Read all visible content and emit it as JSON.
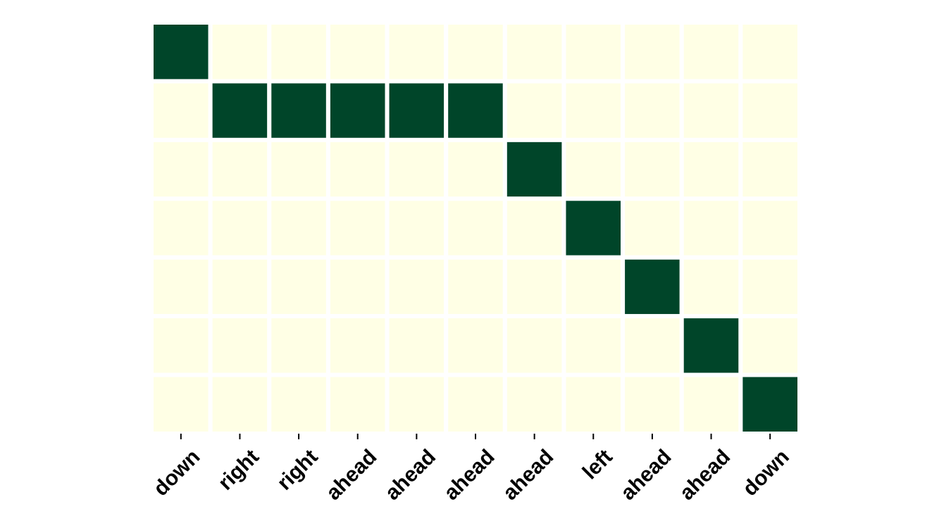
{
  "chart_data": {
    "type": "heatmap",
    "title": "",
    "xlabel": "",
    "ylabel": "",
    "x_categories": [
      "down",
      "right",
      "right",
      "ahead",
      "ahead",
      "ahead",
      "ahead",
      "left",
      "ahead",
      "ahead",
      "down"
    ],
    "y_categories": [],
    "rows": 7,
    "values": [
      [
        1,
        0,
        0,
        0,
        0,
        0,
        0,
        0,
        0,
        0,
        0
      ],
      [
        0,
        1,
        1,
        1,
        1,
        1,
        0,
        0,
        0,
        0,
        0
      ],
      [
        0,
        0,
        0,
        0,
        0,
        0,
        1,
        0,
        0,
        0,
        0
      ],
      [
        0,
        0,
        0,
        0,
        0,
        0,
        0,
        1,
        0,
        0,
        0
      ],
      [
        0,
        0,
        0,
        0,
        0,
        0,
        0,
        0,
        1,
        0,
        0
      ],
      [
        0,
        0,
        0,
        0,
        0,
        0,
        0,
        0,
        0,
        1,
        0
      ],
      [
        0,
        0,
        0,
        0,
        0,
        0,
        0,
        0,
        0,
        0,
        1
      ]
    ],
    "colors": {
      "low": "#ffffe5",
      "high": "#004529",
      "gridline": "#ffffff"
    },
    "grid": false,
    "legend": "none"
  }
}
